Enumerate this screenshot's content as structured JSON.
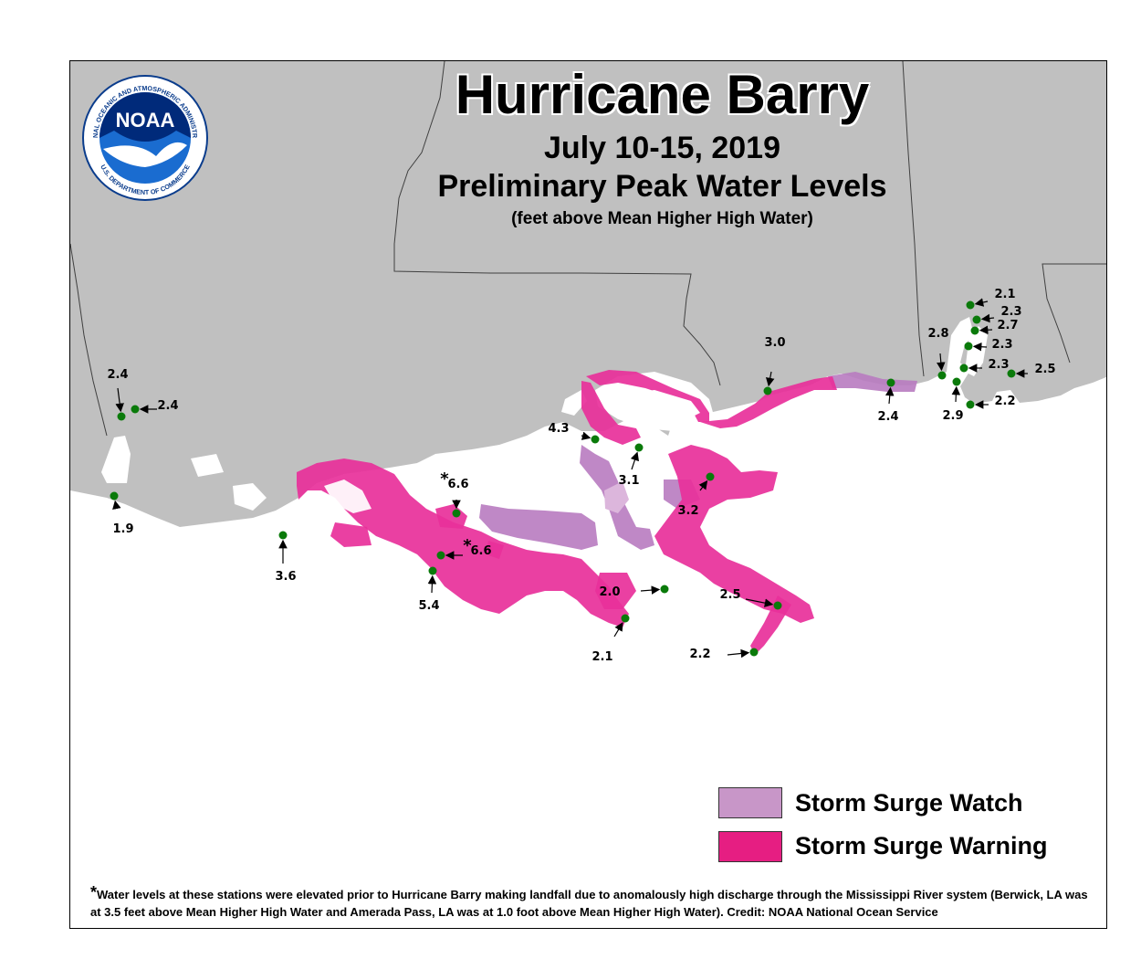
{
  "title": "Hurricane Barry",
  "dates": "July 10-15, 2019",
  "subtitle": "Preliminary Peak Water Levels",
  "units": "(feet above Mean Higher High Water)",
  "logo": {
    "icon": "noaa-logo-icon",
    "center_text": "NOAA",
    "ring_top": "NATIONAL OCEANIC AND ATMOSPHERIC ADMINISTRATION",
    "ring_bottom": "U.S. DEPARTMENT OF COMMERCE"
  },
  "legend": [
    {
      "label": "Storm Surge Watch",
      "color": "#c896c8"
    },
    {
      "label": "Storm Surge Warning",
      "color": "#e61e82"
    }
  ],
  "colors": {
    "land": "#c0c0c0",
    "water": "#ffffff",
    "watch": "#b87bc0",
    "warning": "#e8309a",
    "station": "#0a7a0a",
    "boundary": "#404040"
  },
  "stations": [
    {
      "value": "2.4",
      "prefix": ""
    },
    {
      "value": "2.4",
      "prefix": ""
    },
    {
      "value": "1.9",
      "prefix": ""
    },
    {
      "value": "3.6",
      "prefix": ""
    },
    {
      "value": "6.6",
      "prefix": "*"
    },
    {
      "value": "6.6",
      "prefix": "*"
    },
    {
      "value": "5.4",
      "prefix": ""
    },
    {
      "value": "4.3",
      "prefix": ""
    },
    {
      "value": "3.1",
      "prefix": ""
    },
    {
      "value": "3.0",
      "prefix": ""
    },
    {
      "value": "3.2",
      "prefix": ""
    },
    {
      "value": "2.0",
      "prefix": ""
    },
    {
      "value": "2.1",
      "prefix": ""
    },
    {
      "value": "2.5",
      "prefix": ""
    },
    {
      "value": "2.2",
      "prefix": ""
    },
    {
      "value": "2.4",
      "prefix": ""
    },
    {
      "value": "2.8",
      "prefix": ""
    },
    {
      "value": "2.9",
      "prefix": ""
    },
    {
      "value": "2.1",
      "prefix": ""
    },
    {
      "value": "2.3",
      "prefix": ""
    },
    {
      "value": "2.7",
      "prefix": ""
    },
    {
      "value": "2.3",
      "prefix": ""
    },
    {
      "value": "2.3",
      "prefix": ""
    },
    {
      "value": "2.5",
      "prefix": ""
    },
    {
      "value": "2.2",
      "prefix": ""
    }
  ],
  "footnote": {
    "star": "*",
    "text": "Water levels at these stations were elevated prior to Hurricane Barry making landfall due to anomalously high discharge through the Mississippi River system (Berwick, LA was at 3.5 feet above Mean Higher High Water and Amerada Pass, LA was at 1.0 foot above Mean Higher High Water). Credit: NOAA National Ocean Service"
  }
}
